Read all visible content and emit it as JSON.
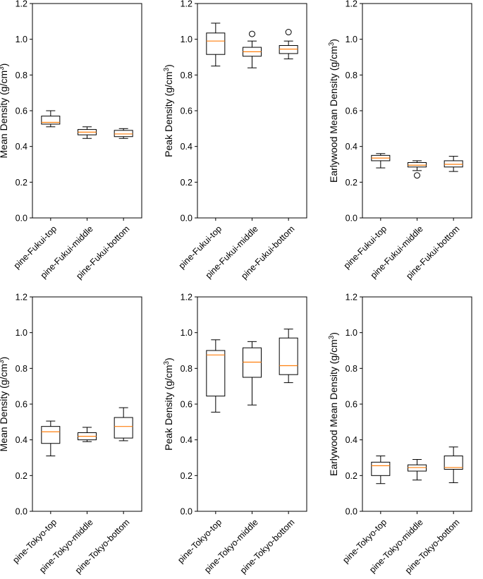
{
  "colors": {
    "median": "#ff7f0e",
    "box": "#000000",
    "background": "#ffffff"
  },
  "chart_data": [
    {
      "type": "box",
      "ylabel": "Mean Density (g/cm",
      "ylabel_sup": "3",
      "ylabel_end": ")",
      "ylim": [
        0,
        1.2
      ],
      "yticks": [
        "0.0",
        "0.2",
        "0.4",
        "0.6",
        "0.8",
        "1.0",
        "1.2"
      ],
      "categories": [
        "pine-Fukui-top",
        "pine-Fukui-middle",
        "pine-Fukui-bottom"
      ],
      "boxes": [
        {
          "whislo": 0.51,
          "q1": 0.525,
          "med": 0.535,
          "q3": 0.57,
          "whishi": 0.6,
          "fliers": []
        },
        {
          "whislo": 0.445,
          "q1": 0.465,
          "med": 0.48,
          "q3": 0.495,
          "whishi": 0.51,
          "fliers": []
        },
        {
          "whislo": 0.445,
          "q1": 0.455,
          "med": 0.47,
          "q3": 0.49,
          "whishi": 0.5,
          "fliers": []
        }
      ]
    },
    {
      "type": "box",
      "ylabel": "Peak Density (g/cm",
      "ylabel_sup": "3",
      "ylabel_end": ")",
      "ylim": [
        0,
        1.2
      ],
      "yticks": [
        "0.0",
        "0.2",
        "0.4",
        "0.6",
        "0.8",
        "1.0",
        "1.2"
      ],
      "categories": [
        "pine-Fukui-top",
        "pine-Fukui-middle",
        "pine-Fukui-bottom"
      ],
      "boxes": [
        {
          "whislo": 0.85,
          "q1": 0.915,
          "med": 0.99,
          "q3": 1.035,
          "whishi": 1.09,
          "fliers": []
        },
        {
          "whislo": 0.84,
          "q1": 0.905,
          "med": 0.93,
          "q3": 0.955,
          "whishi": 0.99,
          "fliers": [
            1.03
          ]
        },
        {
          "whislo": 0.89,
          "q1": 0.92,
          "med": 0.945,
          "q3": 0.965,
          "whishi": 0.99,
          "fliers": [
            1.04
          ]
        }
      ]
    },
    {
      "type": "box",
      "ylabel": "Earlywood Mean Density (g/cm",
      "ylabel_sup": "3",
      "ylabel_end": ")",
      "ylim": [
        0,
        1.2
      ],
      "yticks": [
        "0.0",
        "0.2",
        "0.4",
        "0.6",
        "0.8",
        "1.0",
        "1.2"
      ],
      "categories": [
        "pine-Fukui-top",
        "pine-Fukui-middle",
        "pine-Fukui-bottom"
      ],
      "boxes": [
        {
          "whislo": 0.28,
          "q1": 0.32,
          "med": 0.335,
          "q3": 0.35,
          "whishi": 0.36,
          "fliers": []
        },
        {
          "whislo": 0.265,
          "q1": 0.285,
          "med": 0.295,
          "q3": 0.31,
          "whishi": 0.32,
          "fliers": [
            0.238
          ]
        },
        {
          "whislo": 0.26,
          "q1": 0.285,
          "med": 0.3,
          "q3": 0.32,
          "whishi": 0.345,
          "fliers": []
        }
      ]
    },
    {
      "type": "box",
      "ylabel": "Mean Density (g/cm",
      "ylabel_sup": "3",
      "ylabel_end": ")",
      "ylim": [
        0,
        1.2
      ],
      "yticks": [
        "0.0",
        "0.2",
        "0.4",
        "0.6",
        "0.8",
        "1.0",
        "1.2"
      ],
      "categories": [
        "pine-Tokyo-top",
        "pine-Tokyo-middle",
        "pine-Tokyo-bottom"
      ],
      "boxes": [
        {
          "whislo": 0.31,
          "q1": 0.38,
          "med": 0.445,
          "q3": 0.475,
          "whishi": 0.505,
          "fliers": []
        },
        {
          "whislo": 0.39,
          "q1": 0.4,
          "med": 0.42,
          "q3": 0.44,
          "whishi": 0.47,
          "fliers": []
        },
        {
          "whislo": 0.395,
          "q1": 0.41,
          "med": 0.475,
          "q3": 0.525,
          "whishi": 0.58,
          "fliers": []
        }
      ]
    },
    {
      "type": "box",
      "ylabel": "Peak Density (g/cm",
      "ylabel_sup": "3",
      "ylabel_end": ")",
      "ylim": [
        0,
        1.2
      ],
      "yticks": [
        "0.0",
        "0.2",
        "0.4",
        "0.6",
        "0.8",
        "1.0",
        "1.2"
      ],
      "categories": [
        "pine-Tokyo-top",
        "pine-Tokyo-middle",
        "pine-Tokyo-bottom"
      ],
      "boxes": [
        {
          "whislo": 0.555,
          "q1": 0.645,
          "med": 0.875,
          "q3": 0.9,
          "whishi": 0.96,
          "fliers": []
        },
        {
          "whislo": 0.595,
          "q1": 0.75,
          "med": 0.835,
          "q3": 0.915,
          "whishi": 0.95,
          "fliers": []
        },
        {
          "whislo": 0.72,
          "q1": 0.765,
          "med": 0.815,
          "q3": 0.97,
          "whishi": 1.02,
          "fliers": []
        }
      ]
    },
    {
      "type": "box",
      "ylabel": "Earlywood Mean Density (g/cm",
      "ylabel_sup": "3",
      "ylabel_end": ")",
      "ylim": [
        0,
        1.2
      ],
      "yticks": [
        "0.0",
        "0.2",
        "0.4",
        "0.6",
        "0.8",
        "1.0",
        "1.2"
      ],
      "categories": [
        "pine-Tokyo-top",
        "pine-Tokyo-middle",
        "pine-Tokyo-bottom"
      ],
      "boxes": [
        {
          "whislo": 0.155,
          "q1": 0.2,
          "med": 0.255,
          "q3": 0.275,
          "whishi": 0.31,
          "fliers": []
        },
        {
          "whislo": 0.175,
          "q1": 0.225,
          "med": 0.245,
          "q3": 0.26,
          "whishi": 0.29,
          "fliers": []
        },
        {
          "whislo": 0.16,
          "q1": 0.235,
          "med": 0.245,
          "q3": 0.31,
          "whishi": 0.36,
          "fliers": []
        }
      ]
    }
  ]
}
